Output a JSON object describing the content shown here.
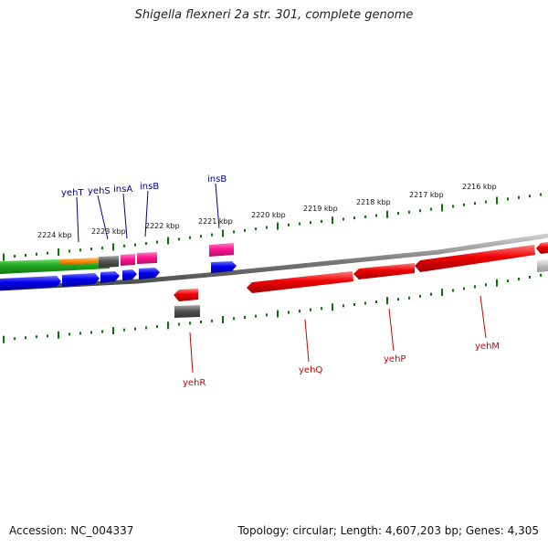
{
  "title": "Shigella flexneri 2a str. 301, complete genome",
  "footer": {
    "accession": "Accession: NC_004337",
    "summary": "Topology: circular; Length: 4,607,203 bp; Genes: 4,305"
  },
  "scale": {
    "unit": "kbp",
    "ticks": [
      "2224 kbp",
      "2223 kbp",
      "2222 kbp",
      "2221 kbp",
      "2220 kbp",
      "2219 kbp",
      "2218 kbp",
      "2217 kbp",
      "2216 kbp"
    ]
  },
  "genes_top": [
    {
      "name": "yehT",
      "color": "#00008b"
    },
    {
      "name": "yehS",
      "color": "#00008b"
    },
    {
      "name": "insA",
      "color": "#00008b"
    },
    {
      "name": "insB",
      "color": "#00008b"
    },
    {
      "name": "insB",
      "color": "#00008b"
    }
  ],
  "genes_bottom": [
    {
      "name": "yehR",
      "color": "#cc0000"
    },
    {
      "name": "yehQ",
      "color": "#cc0000"
    },
    {
      "name": "yehP",
      "color": "#cc0000"
    },
    {
      "name": "yehM",
      "color": "#cc0000"
    }
  ],
  "colors": {
    "forward_cds": "#0000ee",
    "reverse_cds": "#ee0000",
    "insertion": "#ff1493",
    "gene_track": "#22aa22",
    "feature": "#ff8c00",
    "pseudo": "#555555",
    "ticks": "#007700",
    "backbone": "#777777"
  }
}
